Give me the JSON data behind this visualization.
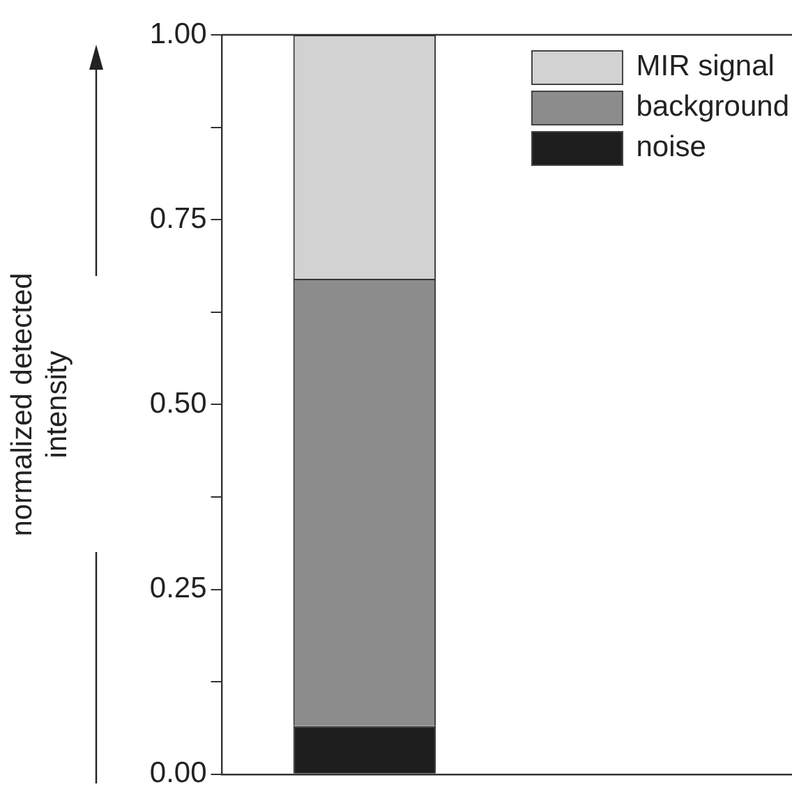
{
  "chart_data": {
    "type": "bar",
    "stacked": true,
    "ylabel": "normalized detected\nintensity",
    "categories": [
      null,
      null
    ],
    "series": [
      {
        "name": "noise",
        "color": "#1e1e1e",
        "values": [
          0.065,
          null
        ]
      },
      {
        "name": "background",
        "color": "#8c8c8c",
        "values": [
          0.605,
          null
        ]
      },
      {
        "name": "MIR signal",
        "color": "#d2d2d2",
        "values": [
          0.33,
          null
        ]
      }
    ],
    "ylim": [
      0,
      1
    ],
    "yticks": [
      {
        "value": 0,
        "label": "0.00"
      },
      {
        "value": 0.125,
        "label": null
      },
      0.25,
      {
        "value": 0.375,
        "label": null
      },
      {
        "value": 0.5,
        "label": "0.50"
      },
      {
        "value": 0.625,
        "label": null
      },
      0.75,
      {
        "value": 0.875,
        "label": null
      },
      {
        "value": 1,
        "label": "1.00"
      }
    ],
    "legend": "top right",
    "grid": false,
    "tick_labels": "y"
  }
}
